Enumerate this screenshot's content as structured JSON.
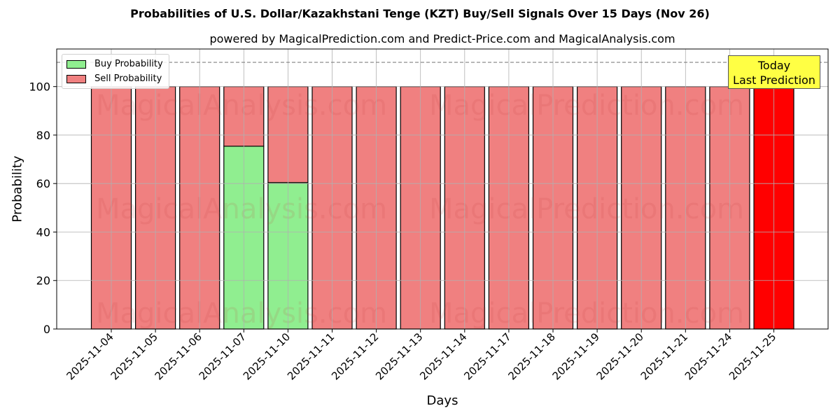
{
  "header": {
    "title": "Probabilities of U.S. Dollar/Kazakhstani Tenge (KZT) Buy/Sell Signals Over 15 Days (Nov 26)",
    "subtitle": "powered by MagicalPrediction.com and Predict-Price.com and MagicalAnalysis.com"
  },
  "axes": {
    "xlabel": "Days",
    "ylabel": "Probability"
  },
  "legend": {
    "items": [
      {
        "label": "Buy Probability",
        "color": "#90ee90"
      },
      {
        "label": "Sell Probability",
        "color": "#f08080"
      }
    ]
  },
  "annotation": {
    "line1": "Today",
    "line2": "Last Prediction"
  },
  "watermark": {
    "texts": [
      "MagicalAnalysis.com",
      "MagicalPrediction.com"
    ]
  },
  "colors": {
    "buy": "#90ee90",
    "sell": "#f08080",
    "today_sell": "#ff0000",
    "annotation_bg": "#ffff44",
    "grid": "#b0b0b0"
  },
  "chart_data": {
    "type": "bar",
    "stacked": true,
    "title": "Probabilities of U.S. Dollar/Kazakhstani Tenge (KZT) Buy/Sell Signals Over 15 Days (Nov 26)",
    "subtitle": "powered by MagicalPrediction.com and Predict-Price.com and MagicalAnalysis.com",
    "xlabel": "Days",
    "ylabel": "Probability",
    "ylim": [
      0,
      115.5
    ],
    "yticks": [
      0,
      20,
      40,
      60,
      80,
      100
    ],
    "grid": true,
    "legend_position": "upper left",
    "reference_line": {
      "y": 110,
      "style": "dashed"
    },
    "categories": [
      "2025-11-04",
      "2025-11-05",
      "2025-11-06",
      "2025-11-07",
      "2025-11-10",
      "2025-11-11",
      "2025-11-12",
      "2025-11-13",
      "2025-11-14",
      "2025-11-17",
      "2025-11-18",
      "2025-11-19",
      "2025-11-20",
      "2025-11-21",
      "2025-11-24",
      "2025-11-25"
    ],
    "series": [
      {
        "name": "Buy Probability",
        "values": [
          0,
          0,
          0,
          75.4,
          60.4,
          0,
          0,
          0,
          0,
          0,
          0,
          0,
          0,
          0,
          0,
          0
        ]
      },
      {
        "name": "Sell Probability",
        "values": [
          100,
          100,
          100,
          24.6,
          39.6,
          100,
          100,
          100,
          100,
          100,
          100,
          100,
          100,
          100,
          100,
          100
        ]
      }
    ],
    "highlight": {
      "category": "2025-11-25",
      "label": "Today Last Prediction"
    }
  }
}
